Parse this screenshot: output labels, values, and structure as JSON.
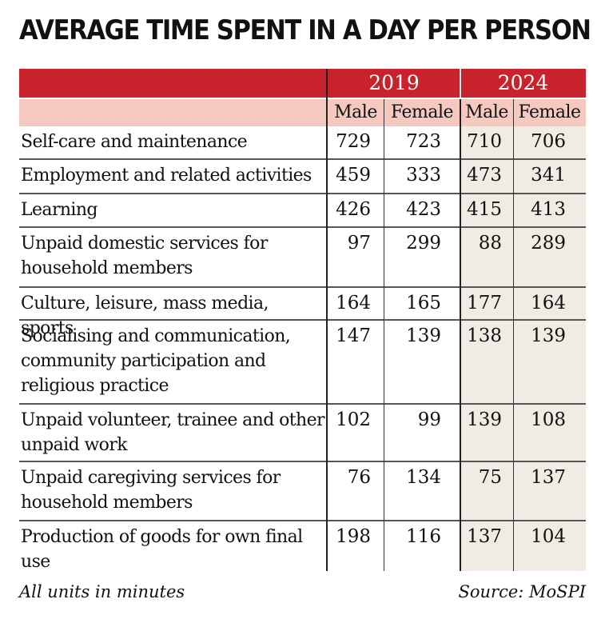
{
  "title": "AVERAGE TIME SPENT IN A DAY PER PERSON",
  "footer": {
    "note": "All units in minutes",
    "source": "Source: MoSPI"
  },
  "chart_data": {
    "type": "table",
    "years": [
      "2019",
      "2024"
    ],
    "genders": [
      "Male",
      "Female",
      "Male",
      "Female"
    ],
    "rows": [
      {
        "category": "Self-care and maintenance",
        "values": [
          729,
          723,
          710,
          706
        ]
      },
      {
        "category": "Employment and related activities",
        "values": [
          459,
          333,
          473,
          341
        ]
      },
      {
        "category": "Learning",
        "values": [
          426,
          423,
          415,
          413
        ]
      },
      {
        "category": "Unpaid domestic services for household members",
        "values": [
          97,
          299,
          88,
          289
        ]
      },
      {
        "category": "Culture, leisure, mass media, sports",
        "values": [
          164,
          165,
          177,
          164
        ]
      },
      {
        "category": "Socialising and communication, community participation and religious practice",
        "values": [
          147,
          139,
          138,
          139
        ]
      },
      {
        "category": "Unpaid volunteer, trainee and other unpaid work",
        "values": [
          102,
          99,
          139,
          108
        ]
      },
      {
        "category": "Unpaid caregiving services for household members",
        "values": [
          76,
          134,
          75,
          137
        ]
      },
      {
        "category": "Production of goods for own final use",
        "values": [
          198,
          116,
          137,
          104
        ]
      }
    ]
  }
}
